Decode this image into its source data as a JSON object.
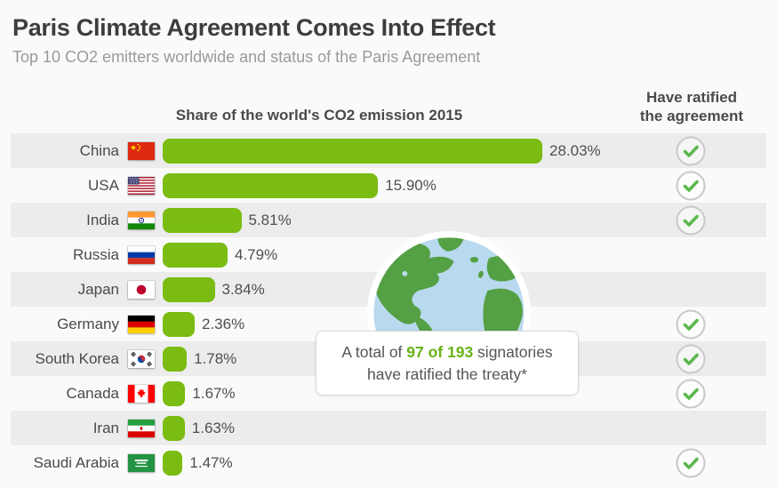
{
  "header": {
    "title": "Paris Climate Agreement Comes Into Effect",
    "subtitle": "Top 10 CO2 emitters worldwide and status of the Paris Agreement"
  },
  "columns": {
    "share": "Share of the world's CO2 emission 2015",
    "ratified_line1": "Have ratified",
    "ratified_line2": "the agreement"
  },
  "tooltip": {
    "prefix": "A total of ",
    "highlight": "97 of 193",
    "suffix": " signatories",
    "line2": "have ratified the treaty*"
  },
  "chart_data": {
    "type": "bar",
    "title": "Share of the world's CO2 emission 2015",
    "unit": "percent",
    "orientation": "horizontal",
    "xlim": [
      0,
      28.03
    ],
    "categories": [
      "China",
      "USA",
      "India",
      "Russia",
      "Japan",
      "Germany",
      "South Korea",
      "Canada",
      "Iran",
      "Saudi Arabia"
    ],
    "values": [
      28.03,
      15.9,
      5.81,
      4.79,
      3.84,
      2.36,
      1.78,
      1.67,
      1.63,
      1.47
    ],
    "ratified": [
      true,
      true,
      true,
      false,
      false,
      true,
      true,
      true,
      false,
      true
    ],
    "annotation": "A total of 97 of 193 signatories have ratified the treaty*",
    "rows": [
      {
        "country": "China",
        "label": "28.03%",
        "value": 28.03,
        "ratified": true
      },
      {
        "country": "USA",
        "label": "15.90%",
        "value": 15.9,
        "ratified": true
      },
      {
        "country": "India",
        "label": "5.81%",
        "value": 5.81,
        "ratified": true
      },
      {
        "country": "Russia",
        "label": "4.79%",
        "value": 4.79,
        "ratified": false
      },
      {
        "country": "Japan",
        "label": "3.84%",
        "value": 3.84,
        "ratified": false
      },
      {
        "country": "Germany",
        "label": "2.36%",
        "value": 2.36,
        "ratified": true
      },
      {
        "country": "South Korea",
        "label": "1.78%",
        "value": 1.78,
        "ratified": true
      },
      {
        "country": "Canada",
        "label": "1.67%",
        "value": 1.67,
        "ratified": true
      },
      {
        "country": "Iran",
        "label": "1.63%",
        "value": 1.63,
        "ratified": false
      },
      {
        "country": "Saudi Arabia",
        "label": "1.47%",
        "value": 1.47,
        "ratified": true
      }
    ]
  },
  "colors": {
    "bar_green": "#7abc12",
    "check_green": "#5cb84e",
    "highlight_green": "#68b317",
    "globe_land": "#54a044",
    "globe_ocean": "#b9d9ee",
    "row_stripe": "#ececec"
  }
}
